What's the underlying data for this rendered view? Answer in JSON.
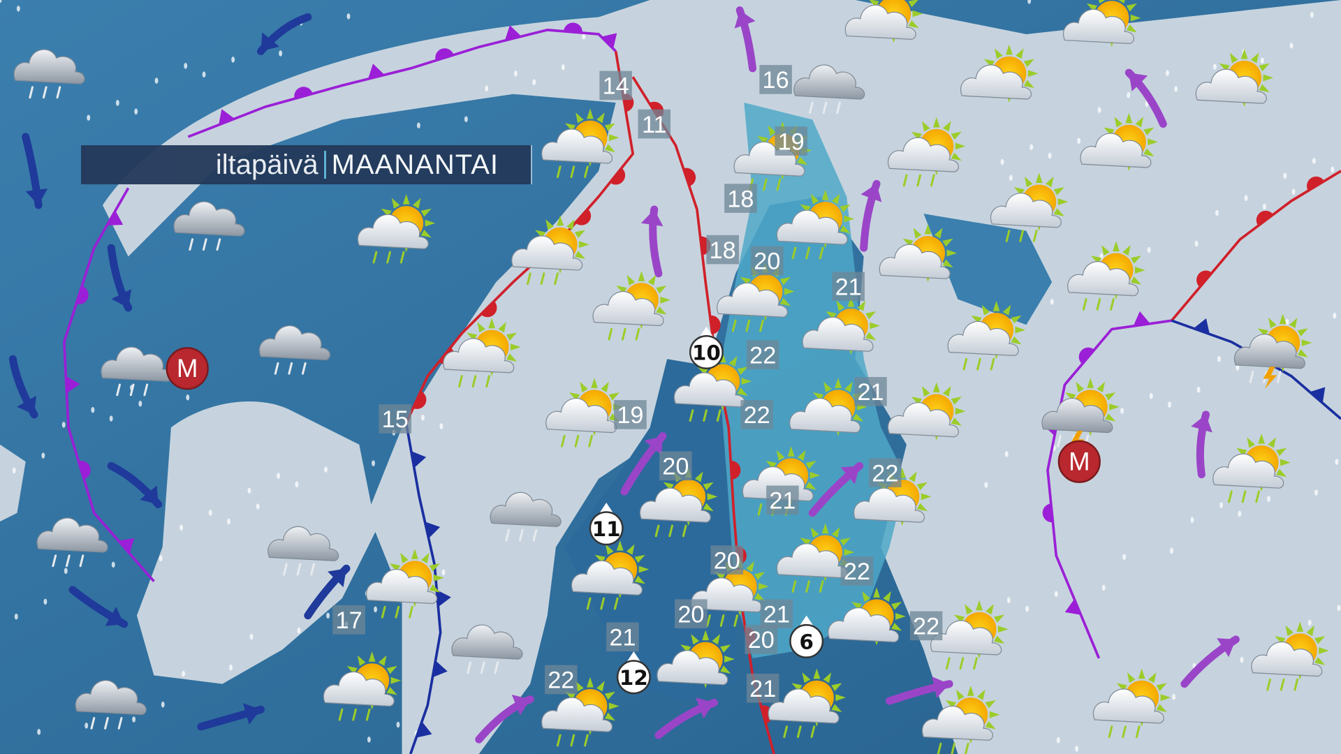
{
  "header": {
    "time_of_day": "iltapäivä",
    "day": "MAANANTAI"
  },
  "colors": {
    "sea": "#2f6f9c",
    "land": "#c9d6e0",
    "warm_front": "#d0202a",
    "cold_front": "#1a2fa0",
    "occluded_front": "#9b1fd6",
    "arrow_purple": "#9a45c8",
    "arrow_blue": "#1f3a9a",
    "low_marker": "#b8282e"
  },
  "temperatures": [
    "14",
    "11",
    "16",
    "19",
    "18",
    "18",
    "20",
    "21",
    "22",
    "21",
    "22",
    "19",
    "15",
    "20",
    "22",
    "21",
    "20",
    "22",
    "17",
    "20",
    "21",
    "20",
    "21",
    "22",
    "22",
    "21"
  ],
  "circled_temperatures": [
    "10",
    "11",
    "12",
    "6"
  ],
  "pressure_labels": [
    "M",
    "M"
  ],
  "icons": [
    "cloud-rain-icon",
    "sun-cloud-icon",
    "sun-cloud-rain-icon",
    "thunderstorm-icon",
    "wind-arrow-icon",
    "low-pressure-icon"
  ]
}
